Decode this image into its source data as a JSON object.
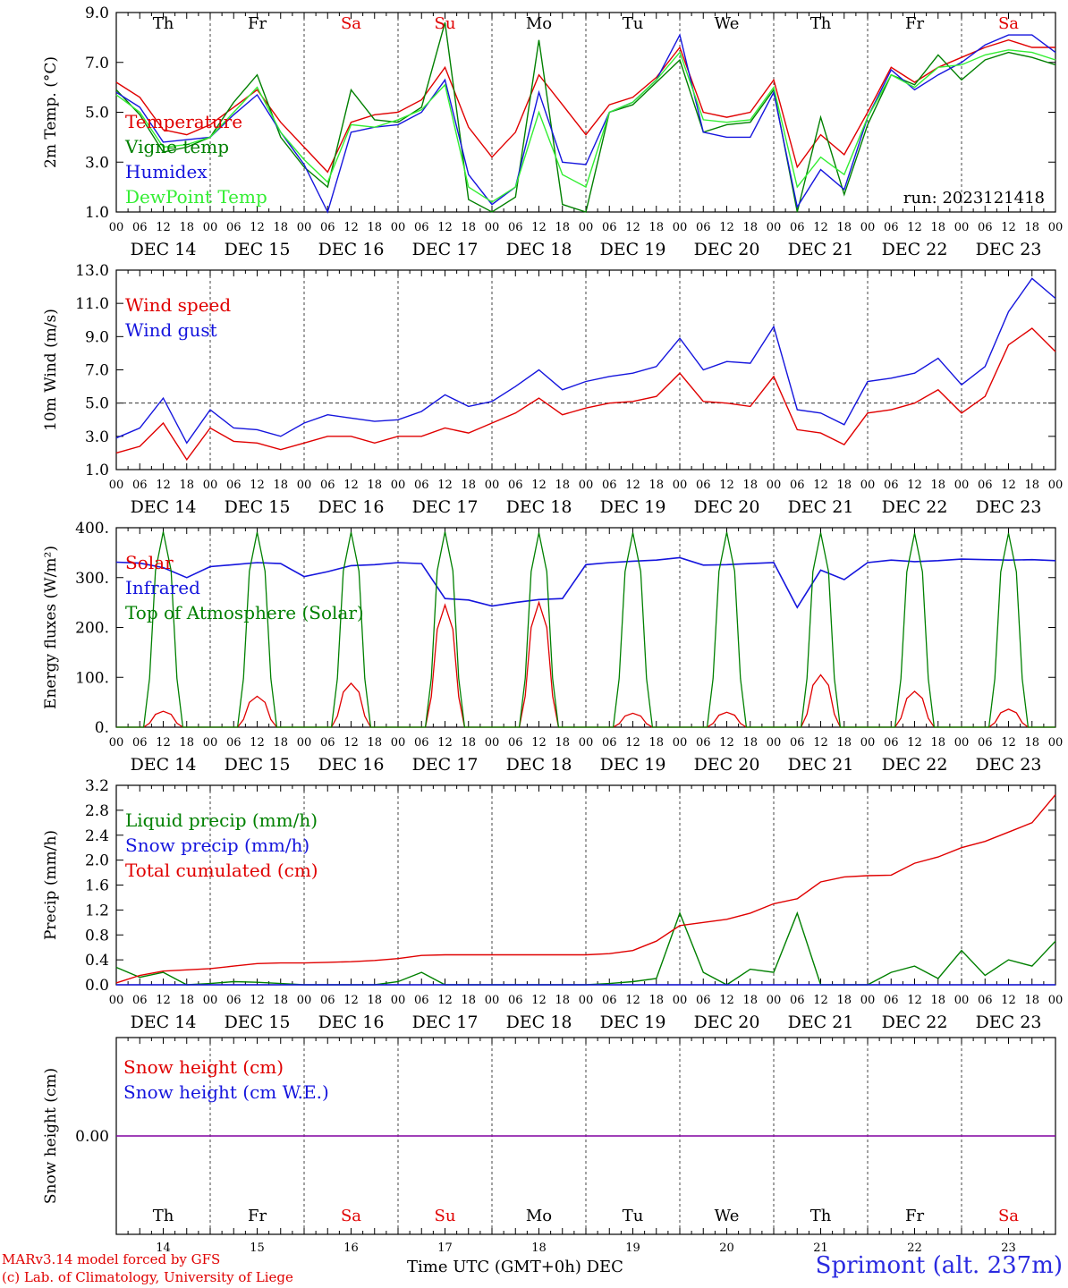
{
  "days": {
    "weekday_labels": [
      "Th",
      "Fr",
      "Sa",
      "Su",
      "Mo",
      "Tu",
      "We",
      "Th",
      "Fr",
      "Sa"
    ],
    "weekend_flags": [
      false,
      false,
      true,
      true,
      false,
      false,
      false,
      false,
      false,
      true
    ],
    "date_labels": [
      "DEC 14",
      "DEC 15",
      "DEC 16",
      "DEC 17",
      "DEC 18",
      "DEC 19",
      "DEC 20",
      "DEC 21",
      "DEC 22",
      "DEC 23"
    ],
    "day_numbers": [
      "14",
      "15",
      "16",
      "17",
      "18",
      "19",
      "20",
      "21",
      "22",
      "23"
    ],
    "hour_ticks": [
      "00",
      "06",
      "12",
      "18"
    ],
    "last_hour_tick": "00"
  },
  "colors": {
    "red": "#e00000",
    "darkgreen": "#008000",
    "blue": "#1515dd",
    "lightgreen": "#33ee33",
    "purple": "#8000a0"
  },
  "chart_data": [
    {
      "type": "line",
      "ylabel": "2m Temp. (°C)",
      "ylim": [
        1.0,
        9.0
      ],
      "yticks": [
        "1.0",
        "3.0",
        "5.0",
        "7.0",
        "9.0"
      ],
      "annotation": "run: 2023121418",
      "x_hours_from_dec14_00z": [
        0,
        6,
        12,
        18,
        24,
        30,
        36,
        42,
        48,
        54,
        60,
        66,
        72,
        78,
        84,
        90,
        96,
        102,
        108,
        114,
        120,
        126,
        132,
        138,
        144,
        150,
        156,
        162,
        168,
        174,
        180,
        186,
        192,
        198,
        204,
        210,
        216,
        222,
        228,
        234,
        240
      ],
      "series": [
        {
          "name": "Temperature",
          "color": "red",
          "values": [
            6.2,
            5.6,
            4.3,
            4.1,
            4.5,
            5.2,
            5.9,
            4.6,
            3.6,
            2.6,
            4.6,
            4.9,
            5.0,
            5.5,
            6.8,
            4.4,
            3.2,
            4.2,
            6.5,
            5.3,
            4.1,
            5.3,
            5.6,
            6.4,
            7.6,
            5.0,
            4.8,
            5.0,
            6.3,
            2.8,
            4.1,
            3.3,
            5.0,
            6.8,
            6.2,
            6.8,
            7.2,
            7.6,
            7.9,
            7.6,
            7.6
          ]
        },
        {
          "name": "Vigne temp",
          "color": "darkgreen",
          "values": [
            5.9,
            4.9,
            3.4,
            3.6,
            4.0,
            5.4,
            6.5,
            4.0,
            2.8,
            2.0,
            5.9,
            4.7,
            4.6,
            5.2,
            8.6,
            1.5,
            1.0,
            1.6,
            7.9,
            1.3,
            1.0,
            5.0,
            5.3,
            6.2,
            7.1,
            4.2,
            4.5,
            4.6,
            5.9,
            1.0,
            4.8,
            1.7,
            4.5,
            6.5,
            6.1,
            7.3,
            6.3,
            7.1,
            7.4,
            7.2,
            6.9
          ]
        },
        {
          "name": "Humidex",
          "color": "blue",
          "values": [
            5.8,
            5.2,
            3.8,
            3.9,
            4.0,
            4.9,
            5.7,
            4.2,
            2.9,
            1.0,
            4.2,
            4.4,
            4.5,
            5.0,
            6.3,
            2.5,
            1.3,
            2.0,
            5.8,
            3.0,
            2.9,
            5.0,
            5.4,
            6.3,
            8.1,
            4.2,
            4.0,
            4.0,
            5.8,
            1.2,
            2.7,
            1.9,
            4.8,
            6.7,
            5.9,
            6.5,
            7.0,
            7.7,
            8.1,
            8.1,
            7.4
          ]
        },
        {
          "name": "DewPoint Temp",
          "color": "lightgreen",
          "values": [
            5.7,
            5.0,
            3.6,
            3.7,
            4.0,
            5.0,
            6.0,
            4.2,
            3.1,
            2.2,
            4.5,
            4.4,
            4.7,
            5.1,
            6.1,
            2.0,
            1.4,
            2.0,
            5.0,
            2.5,
            2.0,
            5.0,
            5.4,
            6.3,
            7.4,
            4.7,
            4.6,
            4.7,
            6.0,
            2.0,
            3.2,
            2.5,
            4.8,
            6.5,
            6.0,
            6.8,
            6.9,
            7.3,
            7.5,
            7.4,
            7.1
          ]
        }
      ]
    },
    {
      "type": "line",
      "ylabel": "10m Wind (m/s)",
      "ylim": [
        1.0,
        13.0
      ],
      "yticks": [
        "1.0",
        "3.0",
        "5.0",
        "7.0",
        "9.0",
        "11.0",
        "13.0"
      ],
      "reference_line": 5.0,
      "x_hours_from_dec14_00z": [
        0,
        6,
        12,
        18,
        24,
        30,
        36,
        42,
        48,
        54,
        60,
        66,
        72,
        78,
        84,
        90,
        96,
        102,
        108,
        114,
        120,
        126,
        132,
        138,
        144,
        150,
        156,
        162,
        168,
        174,
        180,
        186,
        192,
        198,
        204,
        210,
        216,
        222,
        228,
        234,
        240
      ],
      "series": [
        {
          "name": "Wind speed",
          "color": "red",
          "values": [
            2.0,
            2.4,
            3.8,
            1.6,
            3.5,
            2.7,
            2.6,
            2.2,
            2.6,
            3.0,
            3.0,
            2.6,
            3.0,
            3.0,
            3.5,
            3.2,
            3.8,
            4.4,
            5.3,
            4.3,
            4.7,
            5.0,
            5.1,
            5.4,
            6.8,
            5.1,
            5.0,
            4.8,
            6.6,
            3.4,
            3.2,
            2.5,
            4.4,
            4.6,
            5.0,
            5.8,
            4.4,
            5.4,
            8.5,
            9.5,
            8.1
          ]
        },
        {
          "name": "Wind gust",
          "color": "blue",
          "values": [
            2.9,
            3.5,
            5.3,
            2.6,
            4.6,
            3.5,
            3.4,
            3.0,
            3.8,
            4.3,
            4.1,
            3.9,
            4.0,
            4.5,
            5.5,
            4.8,
            5.1,
            6.0,
            7.0,
            5.8,
            6.3,
            6.6,
            6.8,
            7.2,
            8.9,
            7.0,
            7.5,
            7.4,
            9.6,
            4.6,
            4.4,
            3.7,
            6.3,
            6.5,
            6.8,
            7.7,
            6.1,
            7.2,
            10.5,
            12.5,
            11.3
          ]
        }
      ]
    },
    {
      "type": "line",
      "ylabel": "Energy fluxes (W/m²)",
      "ylim": [
        0,
        400
      ],
      "yticks": [
        "0.",
        "100.",
        "200.",
        "300.",
        "400."
      ],
      "series": [
        {
          "name": "Solar",
          "color": "red",
          "daily_peak": [
            32,
            62,
            88,
            245,
            250,
            28,
            30,
            105,
            72,
            36
          ]
        },
        {
          "name": "Infrared",
          "color": "blue",
          "x_hours_from_dec14_00z": [
            0,
            6,
            12,
            18,
            24,
            30,
            36,
            42,
            48,
            54,
            60,
            66,
            72,
            78,
            84,
            90,
            96,
            102,
            108,
            114,
            120,
            126,
            132,
            138,
            144,
            150,
            156,
            162,
            168,
            174,
            180,
            186,
            192,
            198,
            204,
            210,
            216,
            222,
            228,
            234,
            240
          ],
          "values": [
            331,
            329,
            320,
            300,
            322,
            326,
            330,
            328,
            302,
            312,
            324,
            326,
            330,
            328,
            258,
            255,
            243,
            250,
            256,
            258,
            326,
            330,
            333,
            335,
            340,
            325,
            326,
            328,
            330,
            240,
            315,
            296,
            330,
            335,
            332,
            334,
            337,
            336,
            335,
            336,
            334
          ]
        },
        {
          "name": "Top of Atmosphere (Solar)",
          "color": "darkgreen",
          "daily_peak": [
            392,
            391,
            391,
            392,
            390,
            390,
            391,
            390,
            389,
            389
          ]
        }
      ]
    },
    {
      "type": "line",
      "ylabel": "Precip (mm/h)",
      "ylim": [
        0.0,
        3.2
      ],
      "yticks": [
        "0.0",
        "0.4",
        "0.8",
        "1.2",
        "1.6",
        "2.0",
        "2.4",
        "2.8",
        "3.2"
      ],
      "x_hours_from_dec14_00z": [
        0,
        6,
        12,
        18,
        24,
        30,
        36,
        42,
        48,
        54,
        60,
        66,
        72,
        78,
        84,
        90,
        96,
        102,
        108,
        114,
        120,
        126,
        132,
        138,
        144,
        150,
        156,
        162,
        168,
        174,
        180,
        186,
        192,
        198,
        204,
        210,
        216,
        222,
        228,
        234,
        240
      ],
      "series": [
        {
          "name": "Liquid precip (mm/h)",
          "color": "darkgreen",
          "values": [
            0.28,
            0.12,
            0.2,
            0.0,
            0.02,
            0.05,
            0.04,
            0.02,
            0.0,
            0.0,
            0.0,
            0.0,
            0.05,
            0.2,
            0.0,
            0.0,
            0.0,
            0.0,
            0.0,
            0.0,
            0.0,
            0.02,
            0.05,
            0.1,
            1.15,
            0.2,
            0.0,
            0.25,
            0.2,
            1.15,
            0.0,
            0.0,
            0.0,
            0.2,
            0.3,
            0.1,
            0.55,
            0.15,
            0.4,
            0.3,
            0.7
          ]
        },
        {
          "name": "Snow precip (mm/h)",
          "color": "blue",
          "values": [
            0,
            0,
            0,
            0,
            0,
            0,
            0,
            0,
            0,
            0,
            0,
            0,
            0,
            0,
            0,
            0,
            0,
            0,
            0,
            0,
            0,
            0,
            0,
            0,
            0,
            0,
            0,
            0,
            0,
            0,
            0,
            0,
            0,
            0,
            0,
            0,
            0,
            0,
            0,
            0,
            0
          ]
        },
        {
          "name": "Total cumulated (cm)",
          "color": "red",
          "values": [
            0.03,
            0.15,
            0.22,
            0.24,
            0.26,
            0.3,
            0.34,
            0.35,
            0.35,
            0.36,
            0.37,
            0.39,
            0.42,
            0.47,
            0.48,
            0.48,
            0.48,
            0.48,
            0.48,
            0.48,
            0.48,
            0.5,
            0.55,
            0.7,
            0.95,
            1.0,
            1.05,
            1.15,
            1.3,
            1.38,
            1.65,
            1.73,
            1.75,
            1.76,
            1.95,
            2.05,
            2.2,
            2.3,
            2.45,
            2.6,
            3.05
          ]
        }
      ]
    },
    {
      "type": "line",
      "ylabel": "Snow height (cm)",
      "ytick": "0.00",
      "series": [
        {
          "name": "Snow height (cm)",
          "color": "red",
          "values": [
            0,
            0
          ]
        },
        {
          "name": "Snow height (cm W.E.)",
          "color": "blue",
          "values": [
            0,
            0
          ]
        }
      ]
    }
  ],
  "footer": {
    "model_line": "MARv3.14 model forced by GFS",
    "credit_line": "(c) Lab. of Climatology, University of Liege",
    "axis_title": "Time UTC (GMT+0h) DEC",
    "station": "Sprimont (alt. 237m)"
  }
}
